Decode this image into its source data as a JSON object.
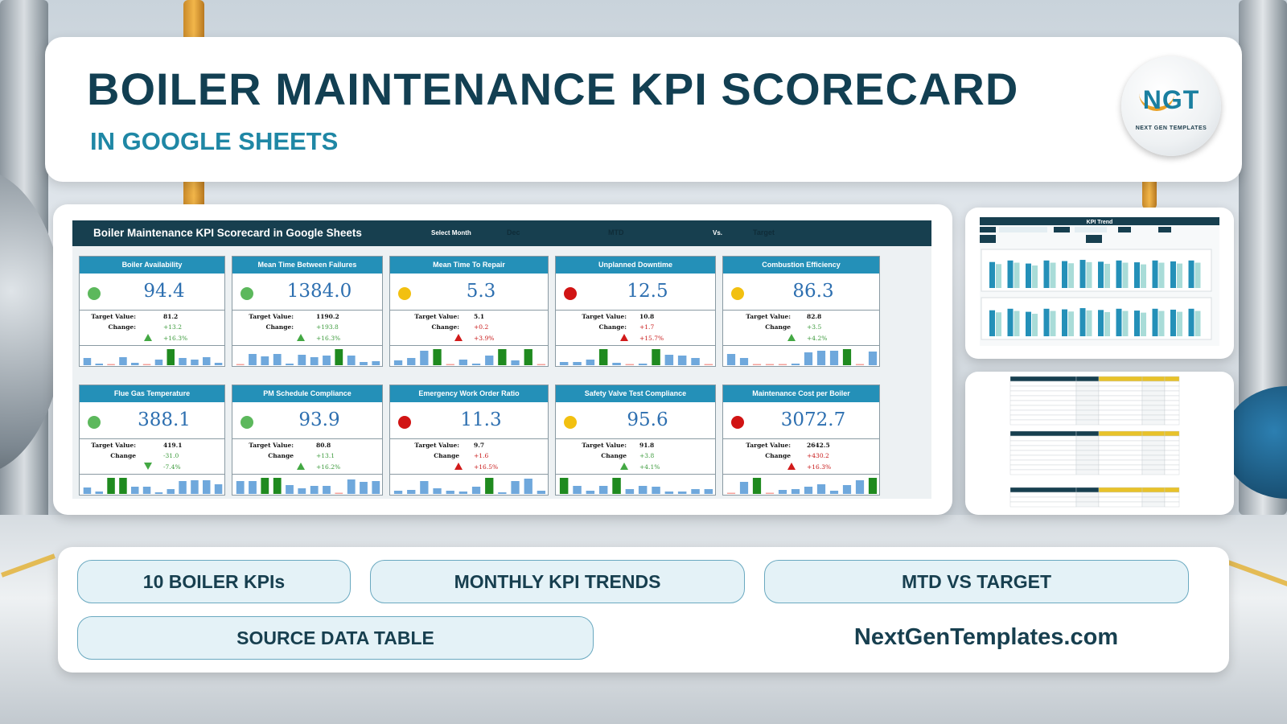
{
  "header": {
    "title": "BOILER MAINTENANCE KPI SCORECARD",
    "subtitle": "IN GOOGLE SHEETS",
    "logo": {
      "letters": "NGT",
      "text": "NEXT GEN TEMPLATES"
    }
  },
  "dashboard": {
    "title": "Boiler Maintenance KPI Scorecard in Google Sheets",
    "select_month_label": "Select Month",
    "month_value": "Dec",
    "mtd_label": "MTD",
    "vs_label": "Vs.",
    "target_label": "Target",
    "status_colors": {
      "green": "#5cb85c",
      "yellow": "#f2c010",
      "red": "#d11414"
    },
    "kpis": [
      {
        "name": "Boiler Availability",
        "value": "94.4",
        "status": "green",
        "target_label": "Target Value:",
        "target": "81.2",
        "change_label": "Change:",
        "change": "+13.2",
        "pct": "+16.3%",
        "direction": "up",
        "good": true,
        "spark": [
          0.45,
          0.1,
          0.05,
          0.5,
          0.15,
          0.05,
          0.35,
          1.0,
          0.45,
          0.35,
          0.5,
          0.15
        ]
      },
      {
        "name": "Mean Time Between Failures",
        "value": "1384.0",
        "status": "green",
        "target_label": "Target Value:",
        "target": "1190.2",
        "change_label": "Change:",
        "change": "+193.8",
        "pct": "+16.3%",
        "direction": "up",
        "good": true,
        "spark": [
          0.05,
          0.7,
          0.55,
          0.7,
          0.1,
          0.65,
          0.5,
          0.6,
          1.0,
          0.6,
          0.2,
          0.25
        ]
      },
      {
        "name": "Mean Time To Repair",
        "value": "5.3",
        "status": "yellow",
        "target_label": "Target Value:",
        "target": "5.1",
        "change_label": "Change:",
        "change": "+0.2",
        "pct": "+3.9%",
        "direction": "up",
        "good": false,
        "spark": [
          0.3,
          0.45,
          0.9,
          1.0,
          0.05,
          0.35,
          0.1,
          0.6,
          1.0,
          0.3,
          1.0,
          0.05
        ]
      },
      {
        "name": "Unplanned Downtime",
        "value": "12.5",
        "status": "red",
        "target_label": "Target Value:",
        "target": "10.8",
        "change_label": "Change:",
        "change": "+1.7",
        "pct": "+15.7%",
        "direction": "up",
        "good": false,
        "spark": [
          0.2,
          0.2,
          0.35,
          1.0,
          0.15,
          0.05,
          0.1,
          1.0,
          0.65,
          0.6,
          0.45,
          0.05
        ]
      },
      {
        "name": "Combustion Efficiency",
        "value": "86.3",
        "status": "yellow",
        "target_label": "Target Value:",
        "target": "82.8",
        "change_label": "Change",
        "change": "+3.5",
        "pct": "+4.2%",
        "direction": "up",
        "good": true,
        "spark": [
          0.7,
          0.45,
          0.05,
          0.05,
          0.05,
          0.1,
          0.8,
          0.9,
          0.9,
          1.0,
          0.05,
          0.85
        ]
      },
      {
        "name": "Flue Gas Temperature",
        "value": "388.1",
        "status": "green",
        "target_label": "Target Value:",
        "target": "419.1",
        "change_label": "Change",
        "change": "-31.0",
        "pct": "-7.4%",
        "direction": "down",
        "good": true,
        "spark": [
          0.4,
          0.15,
          1.0,
          1.0,
          0.45,
          0.45,
          0.1,
          0.3,
          0.8,
          0.85,
          0.85,
          0.6
        ]
      },
      {
        "name": "PM Schedule Compliance",
        "value": "93.9",
        "status": "green",
        "target_label": "Target Value:",
        "target": "80.8",
        "change_label": "Change",
        "change": "+13.1",
        "pct": "+16.2%",
        "direction": "up",
        "good": true,
        "spark": [
          0.8,
          0.8,
          1.0,
          1.0,
          0.55,
          0.35,
          0.5,
          0.5,
          0.05,
          0.9,
          0.75,
          0.8
        ]
      },
      {
        "name": "Emergency Work Order Ratio",
        "value": "11.3",
        "status": "red",
        "target_label": "Target Value:",
        "target": "9.7",
        "change_label": "Change",
        "change": "+1.6",
        "pct": "+16.5%",
        "direction": "up",
        "good": false,
        "spark": [
          0.2,
          0.25,
          0.8,
          0.35,
          0.2,
          0.15,
          0.45,
          1.0,
          0.1,
          0.8,
          0.95,
          0.2
        ]
      },
      {
        "name": "Safety Valve Test Compliance",
        "value": "95.6",
        "status": "yellow",
        "target_label": "Target Value:",
        "target": "91.8",
        "change_label": "Change",
        "change": "+3.8",
        "pct": "+4.1%",
        "direction": "up",
        "good": true,
        "spark": [
          1.0,
          0.5,
          0.2,
          0.5,
          1.0,
          0.3,
          0.5,
          0.45,
          0.15,
          0.15,
          0.3,
          0.3
        ]
      },
      {
        "name": "Maintenance Cost per Boiler",
        "value": "3072.7",
        "status": "red",
        "target_label": "Target Value:",
        "target": "2642.5",
        "change_label": "Change",
        "change": "+430.2",
        "pct": "+16.3%",
        "direction": "up",
        "good": false,
        "spark": [
          0.05,
          0.75,
          1.0,
          0.05,
          0.25,
          0.3,
          0.45,
          0.6,
          0.2,
          0.55,
          0.85,
          1.0
        ]
      }
    ]
  },
  "previews": {
    "trend_title": "KPI Trend",
    "trend_bars": [
      0.85,
      0.9,
      0.8,
      0.9,
      0.88,
      0.92,
      0.86,
      0.9,
      0.84,
      0.9,
      0.87,
      0.9
    ]
  },
  "features": {
    "kpis": "10 BOILER KPIs",
    "trends": "MONTHLY KPI TRENDS",
    "mtd": "MTD VS TARGET",
    "source": "SOURCE DATA TABLE",
    "website": "NextGenTemplates.com"
  },
  "colors": {
    "primary_dark": "#173f4f",
    "accent_blue": "#2490b8",
    "spark_bar": "#6fa8dc",
    "spark_highlight": "#1f8a1f",
    "spark_low": "#f4a09a"
  }
}
